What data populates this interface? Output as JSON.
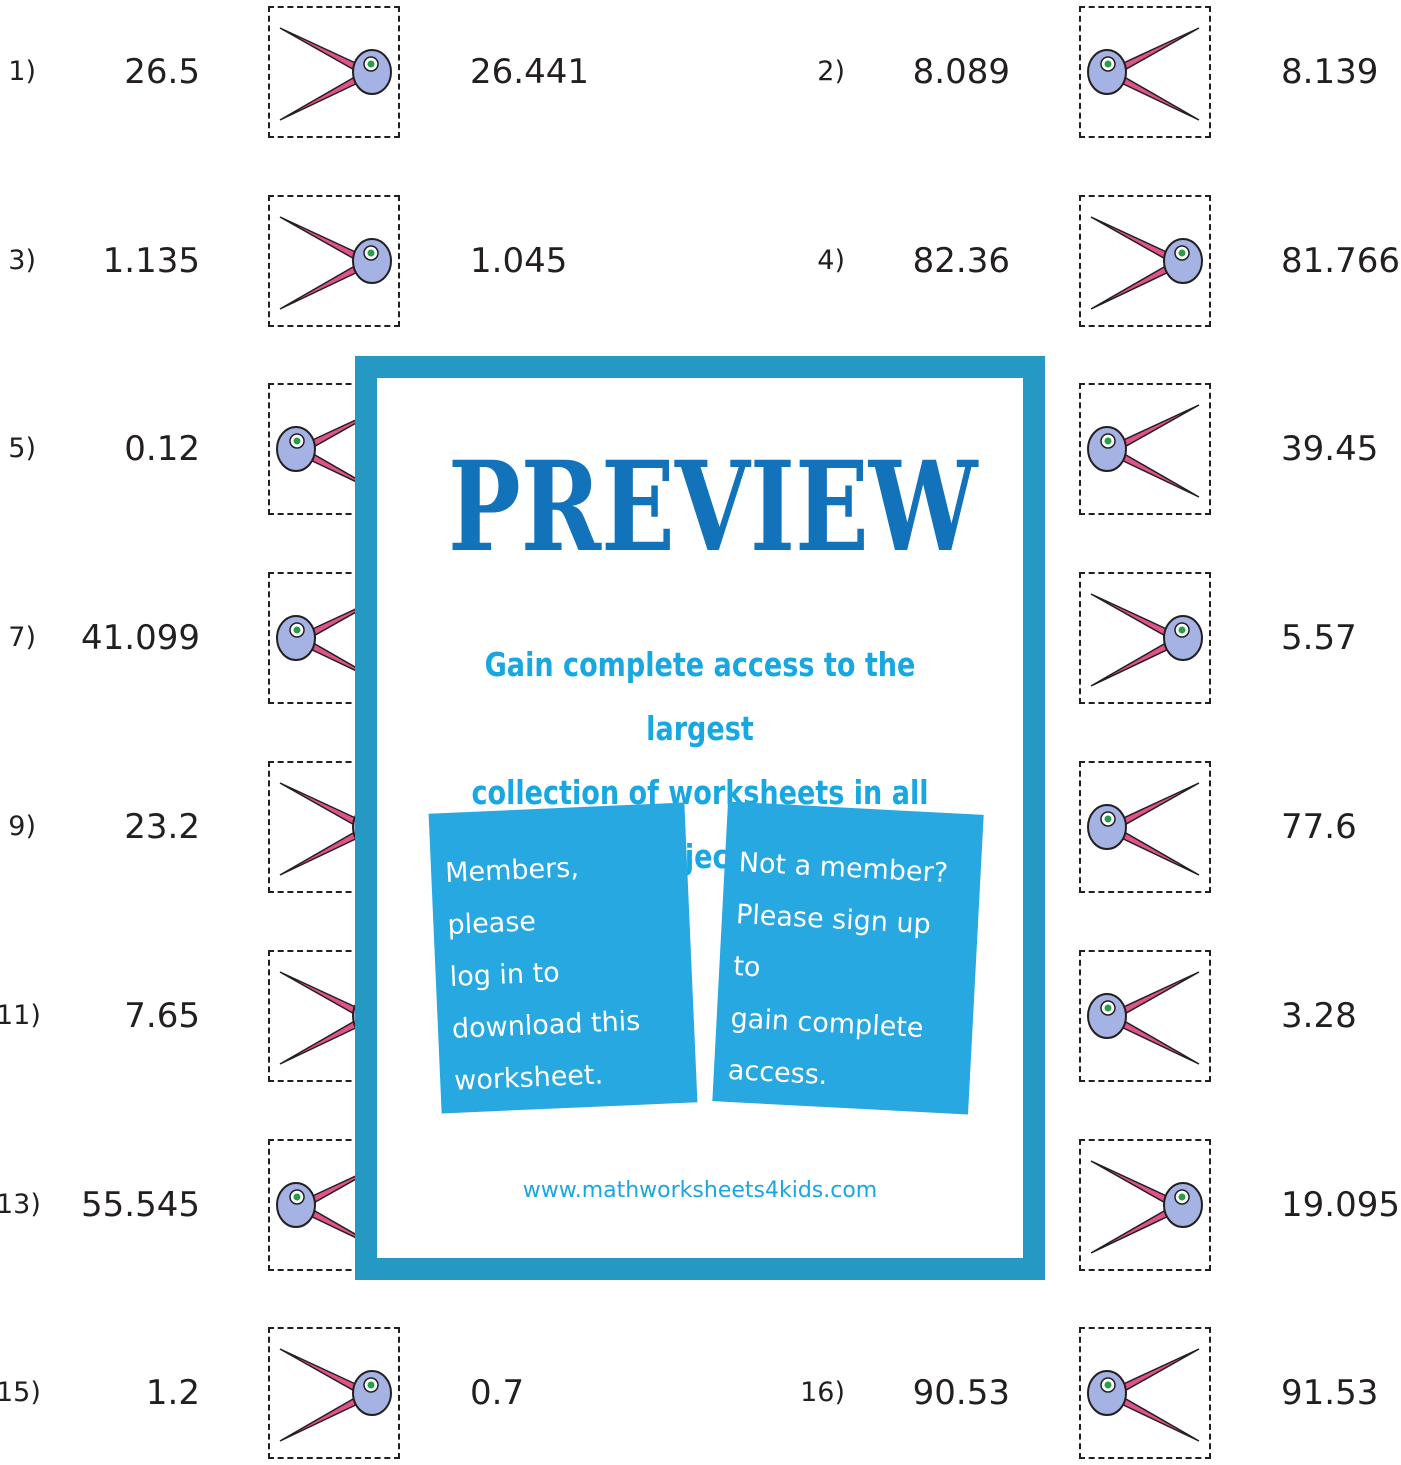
{
  "problems": [
    {
      "n": "1)",
      "a": "26.5",
      "b": "26.441",
      "sym": "gt"
    },
    {
      "n": "2)",
      "a": "8.089",
      "b": "8.139",
      "sym": "lt"
    },
    {
      "n": "3)",
      "a": "1.135",
      "b": "1.045",
      "sym": "gt"
    },
    {
      "n": "4)",
      "a": "82.36",
      "b": "81.766",
      "sym": "gt"
    },
    {
      "n": "5)",
      "a": "0.12",
      "b": "",
      "sym": "lt"
    },
    {
      "n": "",
      "a": "",
      "b": "39.45",
      "sym": "lt"
    },
    {
      "n": "7)",
      "a": "41.099",
      "b": "",
      "sym": "lt"
    },
    {
      "n": "",
      "a": "",
      "b": "5.57",
      "sym": "gt"
    },
    {
      "n": "9)",
      "a": "23.2",
      "b": "",
      "sym": "gt"
    },
    {
      "n": "",
      "a": "",
      "b": "77.6",
      "sym": "lt"
    },
    {
      "n": "11)",
      "a": "7.65",
      "b": "",
      "sym": "gt"
    },
    {
      "n": "",
      "a": "",
      "b": "3.28",
      "sym": "lt"
    },
    {
      "n": "13)",
      "a": "55.545",
      "b": "",
      "sym": "lt"
    },
    {
      "n": "",
      "a": "",
      "b": "19.095",
      "sym": "gt"
    },
    {
      "n": "15)",
      "a": "1.2",
      "b": "0.7",
      "sym": "gt"
    },
    {
      "n": "16)",
      "a": "90.53",
      "b": "91.53",
      "sym": "lt"
    }
  ],
  "preview": {
    "title": "PREVIEW",
    "subtitle_line1": "Gain complete access to the largest",
    "subtitle_line2": "collection of worksheets in all subjects!",
    "card1": [
      "Members, please",
      "log in to",
      "download this",
      "worksheet."
    ],
    "card2": [
      "Not a member?",
      "Please sign up to",
      "gain complete",
      "access."
    ],
    "url": "www.mathworksheets4kids.com"
  },
  "colors": {
    "frame": "#2598c3",
    "title": "#1273bb",
    "card": "#27a8e1",
    "alligator_head": "#a4b3e3",
    "alligator_jaw": "#e0528a"
  },
  "icons": {
    "comparison": "alligator-mouth-icon"
  }
}
